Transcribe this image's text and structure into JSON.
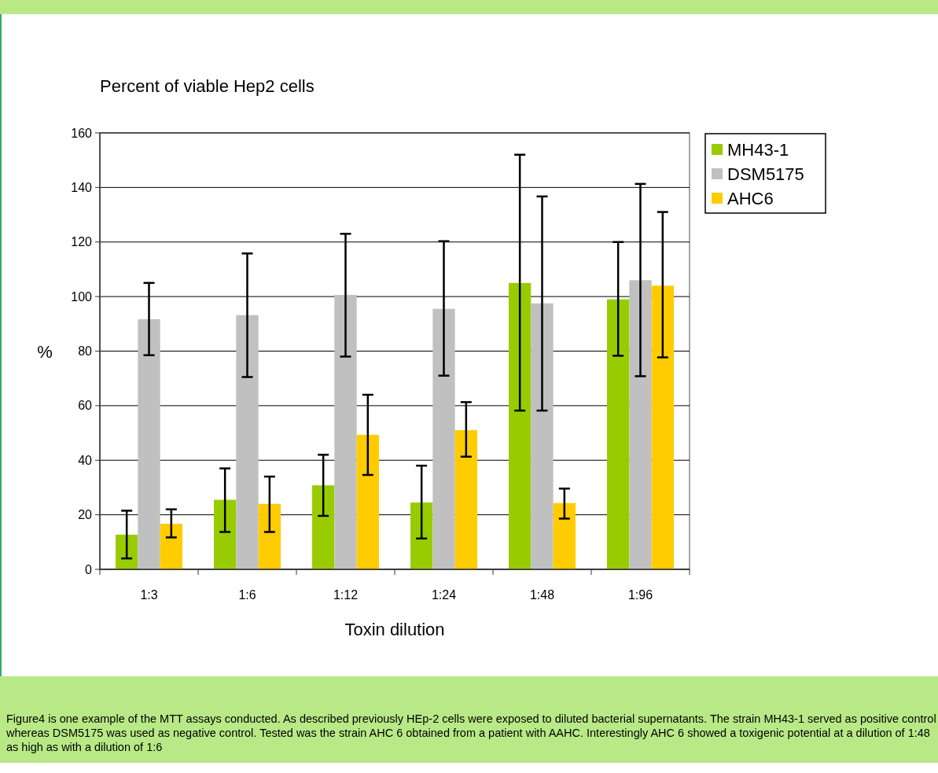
{
  "chart_data": {
    "type": "bar",
    "title": "Percent of viable Hep2 cells",
    "xlabel": "Toxin dilution",
    "ylabel": "%",
    "categories": [
      "1:3",
      "1:6",
      "1:12",
      "1:24",
      "1:48",
      "1:96"
    ],
    "series": [
      {
        "name": "MH43-1",
        "color": "#99cc00",
        "values": [
          12.7,
          25.5,
          30.8,
          24.5,
          105,
          99
        ],
        "errors": [
          [
            4,
            21.5
          ],
          [
            13.7,
            37
          ],
          [
            19.6,
            42
          ],
          [
            11.3,
            38
          ],
          [
            58.2,
            152
          ],
          [
            78.3,
            120
          ]
        ]
      },
      {
        "name": "DSM5175",
        "color": "#c0c0c0",
        "values": [
          91.7,
          93.2,
          100.6,
          95.5,
          97.5,
          106
        ],
        "errors": [
          [
            78.5,
            105
          ],
          [
            70.5,
            115.8
          ],
          [
            78,
            123
          ],
          [
            71,
            120.3
          ],
          [
            58.2,
            136.7
          ],
          [
            70.8,
            141.3
          ]
        ]
      },
      {
        "name": "AHC6",
        "color": "#ffcc00",
        "values": [
          16.7,
          24,
          49.3,
          51,
          24.3,
          104
        ],
        "errors": [
          [
            11.7,
            22
          ],
          [
            13.7,
            34
          ],
          [
            34.6,
            64
          ],
          [
            41.3,
            61.3
          ],
          [
            18.6,
            29.6
          ],
          [
            77.7,
            131
          ]
        ]
      }
    ],
    "ylim": [
      0,
      160
    ],
    "yticks": [
      0,
      20,
      40,
      60,
      80,
      100,
      120,
      140,
      160
    ],
    "grid": "y",
    "legend": "right",
    "annotations": [
      "Figure4 is one example of the MTT assays conducted. As described previously HEp-2 cells were exposed to diluted bacterial supernatants. The strain MH43-1 served as positive control whereas DSM5175 was used as negative control. Tested was the strain AHC 6 obtained from a patient with AAHC. Interestingly AHC 6 showed a toxigenic potential at a dilution of 1:48 as high as with a dilution of 1:6"
    ]
  }
}
